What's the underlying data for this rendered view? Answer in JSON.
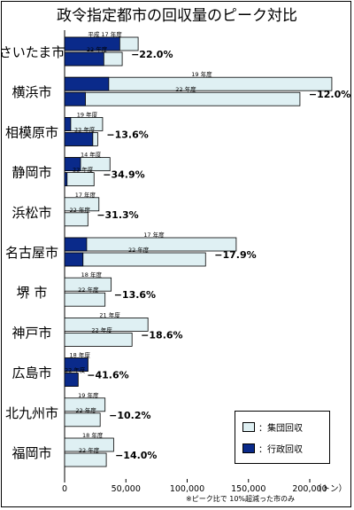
{
  "chart_data": {
    "type": "bar",
    "title": "政令指定都市の回収量のピーク対比",
    "unit_label": "（トン）",
    "footnote": "※ピーク比で 10%超減った市のみ",
    "xlim": [
      0,
      200000
    ],
    "x_ticks": [
      "0",
      "50,000",
      "100,000",
      "150,000",
      "200,000"
    ],
    "x_tick_values": [
      0,
      50000,
      100000,
      150000,
      200000
    ],
    "legend": [
      {
        "name": "：集団回収",
        "color": "#dff0f3"
      },
      {
        "name": "：行政回収",
        "color": "#0a2a8a"
      }
    ],
    "colors": {
      "collective": "#dff0f3",
      "administrative": "#0a2a8a"
    },
    "cities": [
      {
        "name": "さいたま市",
        "peak_label": "平成 17 年度",
        "peak_collective": 60000,
        "peak_admin": 45000,
        "current_label": "22 年度",
        "current_collective": 47000,
        "current_admin": 32000,
        "change": "−22.0%"
      },
      {
        "name": "横浜市",
        "peak_label": "19 年度",
        "peak_collective": 218000,
        "peak_admin": 36000,
        "current_label": "22 年度",
        "current_collective": 192000,
        "current_admin": 17000,
        "change": "−12.0%"
      },
      {
        "name": "相模原市",
        "peak_label": "19 年度",
        "peak_collective": 31000,
        "peak_admin": 5000,
        "current_label": "22 年度",
        "current_collective": 27000,
        "current_admin": 23000,
        "change": "−13.6%"
      },
      {
        "name": "静岡市",
        "peak_label": "14 年度",
        "peak_collective": 37000,
        "peak_admin": 13000,
        "current_label": "22 年度",
        "current_collective": 24000,
        "current_admin": 2000,
        "change": "−34.9%"
      },
      {
        "name": "浜松市",
        "peak_label": "17 年度",
        "peak_collective": 28000,
        "peak_admin": 0,
        "current_label": "22 年度",
        "current_collective": 19000,
        "current_admin": 0,
        "change": "−31.3%"
      },
      {
        "name": "名古屋市",
        "peak_label": "17 年度",
        "peak_collective": 140000,
        "peak_admin": 18000,
        "current_label": "22 年度",
        "current_collective": 115000,
        "current_admin": 15000,
        "change": "−17.9%"
      },
      {
        "name": "堺 市",
        "peak_label": "18 年度",
        "peak_collective": 38000,
        "peak_admin": 0,
        "current_label": "22 年度",
        "current_collective": 33000,
        "current_admin": 0,
        "change": "−13.6%"
      },
      {
        "name": "神戸市",
        "peak_label": "21 年度",
        "peak_collective": 68000,
        "peak_admin": 0,
        "current_label": "22 年度",
        "current_collective": 55000,
        "current_admin": 0,
        "change": "−18.6%"
      },
      {
        "name": "広島市",
        "peak_label": "18 年度",
        "peak_collective": 19000,
        "peak_admin": 19000,
        "current_label": "22 年度",
        "current_collective": 11000,
        "current_admin": 11000,
        "change": "−41.6%"
      },
      {
        "name": "北九州市",
        "peak_label": "19 年度",
        "peak_collective": 33000,
        "peak_admin": 0,
        "current_label": "22 年度",
        "current_collective": 29000,
        "current_admin": 0,
        "change": "−10.2%"
      },
      {
        "name": "福岡市",
        "peak_label": "18 年度",
        "peak_collective": 40000,
        "peak_admin": 0,
        "current_label": "22 年度",
        "current_collective": 34000,
        "current_admin": 0,
        "change": "−14.0%"
      }
    ]
  }
}
